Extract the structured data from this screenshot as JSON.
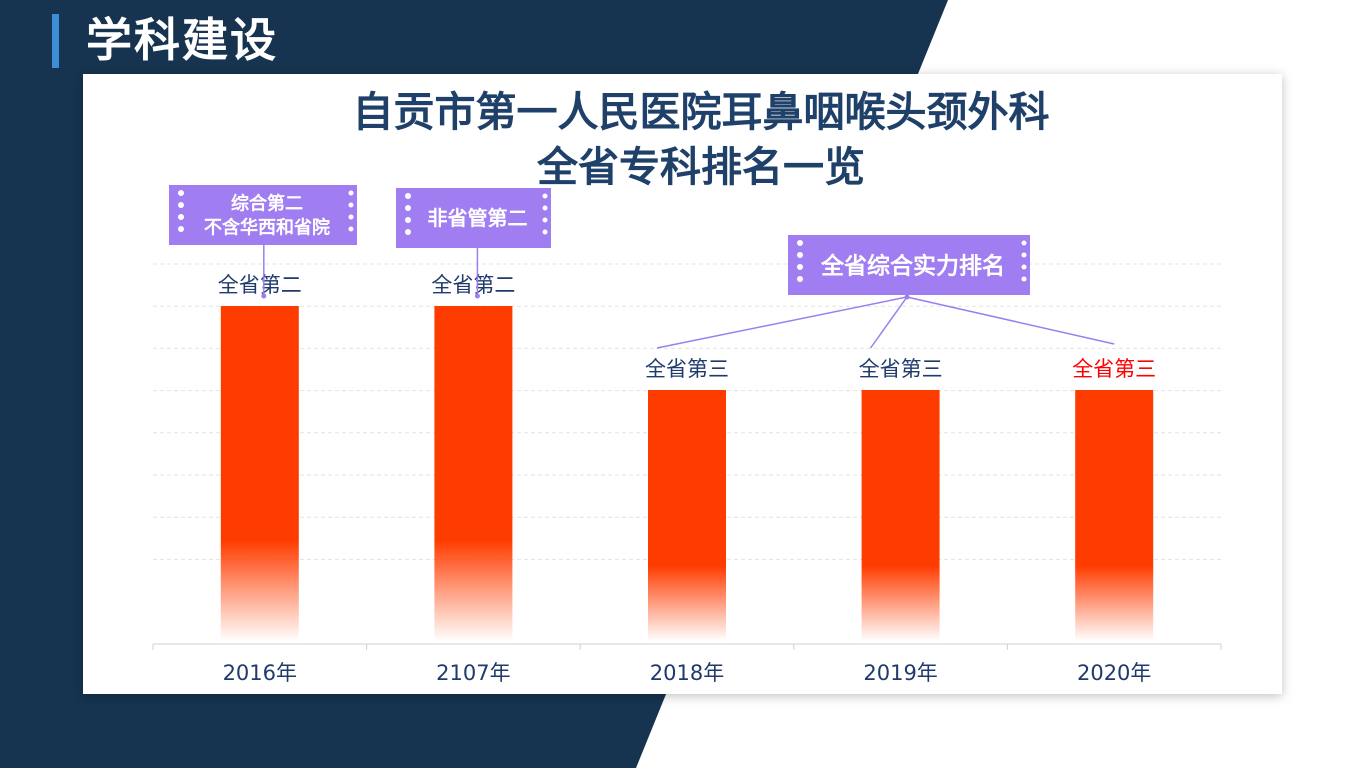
{
  "slide": {
    "title": "学科建设"
  },
  "chart_data": {
    "type": "bar",
    "title_line1": "自贡市第一人民医院耳鼻咽喉头颈外科",
    "title_line2": "全省专科排名一览",
    "categories": [
      "2016年",
      "2107年",
      "2018年",
      "2019年",
      "2020年"
    ],
    "values": [
      2,
      2,
      3,
      3,
      3
    ],
    "value_labels": [
      "全省第二",
      "全省第二",
      "全省第三",
      "全省第三",
      "全省第三"
    ],
    "value_meaning": "全省排名（名次）",
    "annotations": [
      {
        "text_lines": [
          "综合第二",
          "不含华西和省院"
        ],
        "points_to": [
          "2016年"
        ]
      },
      {
        "text_lines": [
          "非省管第二"
        ],
        "points_to": [
          "2107年"
        ]
      },
      {
        "text_lines": [
          "全省综合实力排名"
        ],
        "points_to": [
          "2018年",
          "2019年",
          "2020年"
        ]
      }
    ],
    "highlight_label_category": "2020年",
    "grid": true,
    "legend": "none",
    "colors": {
      "bar": "#ff3c00",
      "label": "#1f3a6b",
      "highlight_label": "#ff0000",
      "callout_fill": "#a07df0",
      "connector": "#9b7ff0",
      "axis_text": "#1f3a6b"
    }
  }
}
